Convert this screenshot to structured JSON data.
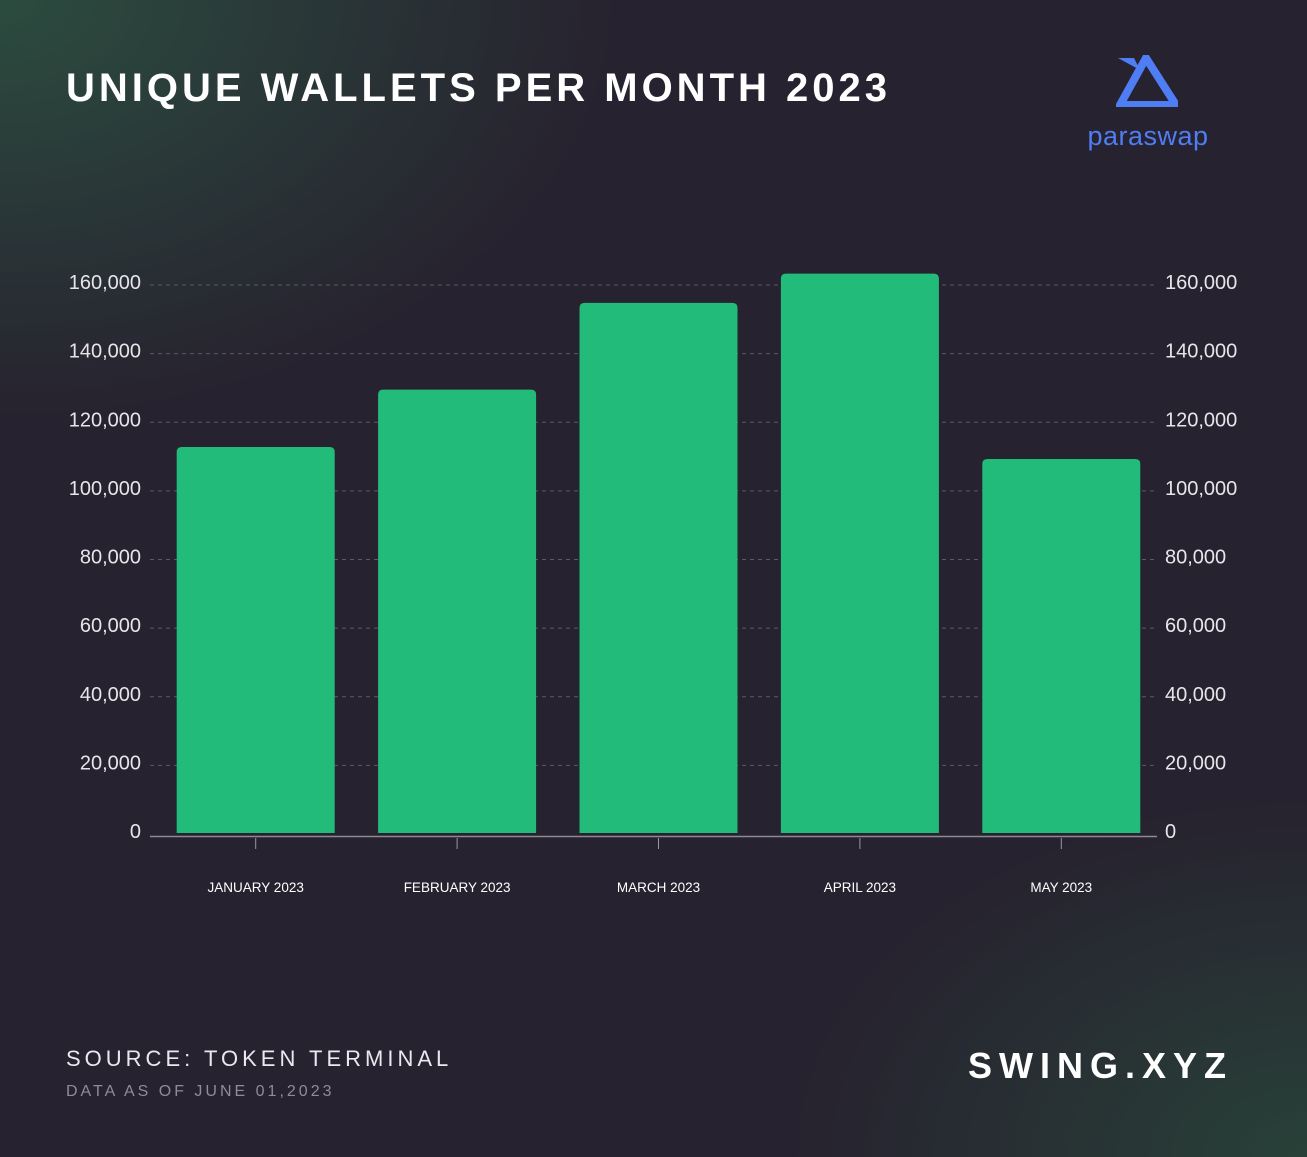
{
  "header": {
    "title": "UNIQUE WALLETS PER MONTH 2023",
    "logo_text": "paraswap",
    "logo_icon": "paraswap-triangle-icon"
  },
  "footer": {
    "source": "SOURCE: TOKEN TERMINAL",
    "date": "DATA AS OF JUNE 01,2023",
    "brand": "SWING.XYZ"
  },
  "colors": {
    "bar": "#22bb7a",
    "background": "#27222f",
    "accent": "#4f7df4"
  },
  "chart_data": {
    "type": "bar",
    "categories": [
      "JANUARY 2023",
      "FEBRUARY 2023",
      "MARCH 2023",
      "APRIL 2023",
      "MAY 2023"
    ],
    "values": [
      112800,
      129500,
      154800,
      163300,
      109300
    ],
    "ylim": [
      0,
      160000
    ],
    "yticks": [
      0,
      20000,
      40000,
      60000,
      80000,
      100000,
      120000,
      140000,
      160000
    ],
    "ytick_labels": [
      "0",
      "20,000",
      "40,000",
      "60,000",
      "80,000",
      "100,000",
      "120,000",
      "140,000",
      "160,000"
    ],
    "dual_y_axis": true,
    "grid": "horizontal dashed",
    "legend": "none"
  }
}
